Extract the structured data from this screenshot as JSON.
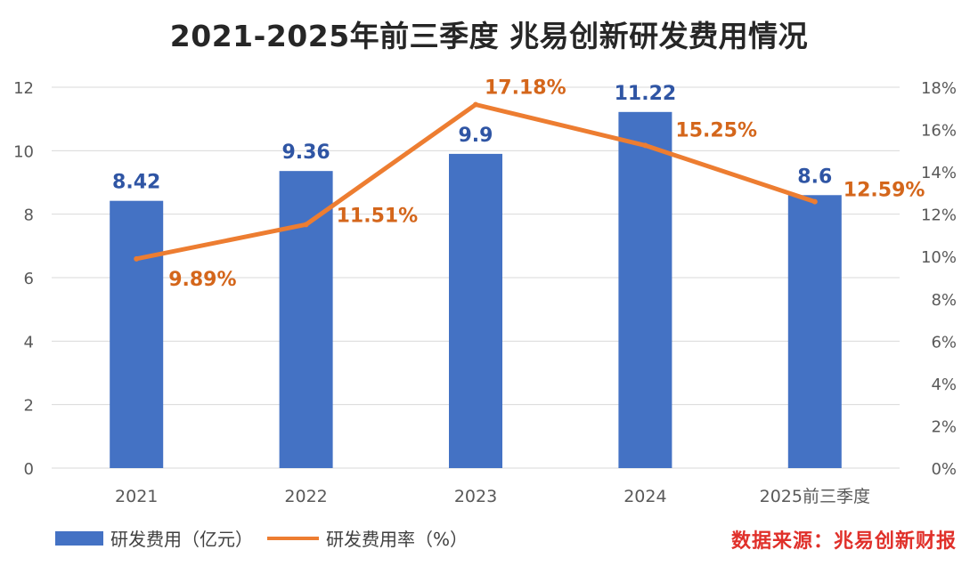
{
  "chart_data": {
    "type": "bar+line",
    "title": "2021-2025年前三季度 兆易创新研发费用情况",
    "categories": [
      "2021",
      "2022",
      "2023",
      "2024",
      "2025前三季度"
    ],
    "series": [
      {
        "name": "研发费用（亿元）",
        "type": "bar",
        "axis": "left",
        "values": [
          8.42,
          9.36,
          9.9,
          11.22,
          8.6
        ],
        "labels": [
          "8.42",
          "9.36",
          "9.9",
          "11.22",
          "8.6"
        ],
        "color": "#4472C4",
        "label_color": "#2F55A4"
      },
      {
        "name": "研发费用率（%）",
        "type": "line",
        "axis": "right",
        "values": [
          9.89,
          11.51,
          17.18,
          15.25,
          12.59
        ],
        "labels": [
          "9.89%",
          "11.51%",
          "17.18%",
          "15.25%",
          "12.59%"
        ],
        "color": "#ED7D31",
        "label_color": "#D4661B"
      }
    ],
    "y_left": {
      "min": 0,
      "max": 12,
      "ticks": [
        "0",
        "2",
        "4",
        "6",
        "8",
        "10",
        "12"
      ]
    },
    "y_right": {
      "min": 0,
      "max": 18,
      "ticks": [
        "0%",
        "2%",
        "4%",
        "6%",
        "8%",
        "10%",
        "12%",
        "14%",
        "16%",
        "18%"
      ]
    },
    "grid": true,
    "legend_position": "bottom-left"
  },
  "source_note": "数据来源：兆易创新财报",
  "colors": {
    "grid": "#D9D9D9",
    "axis_text": "#595959"
  }
}
